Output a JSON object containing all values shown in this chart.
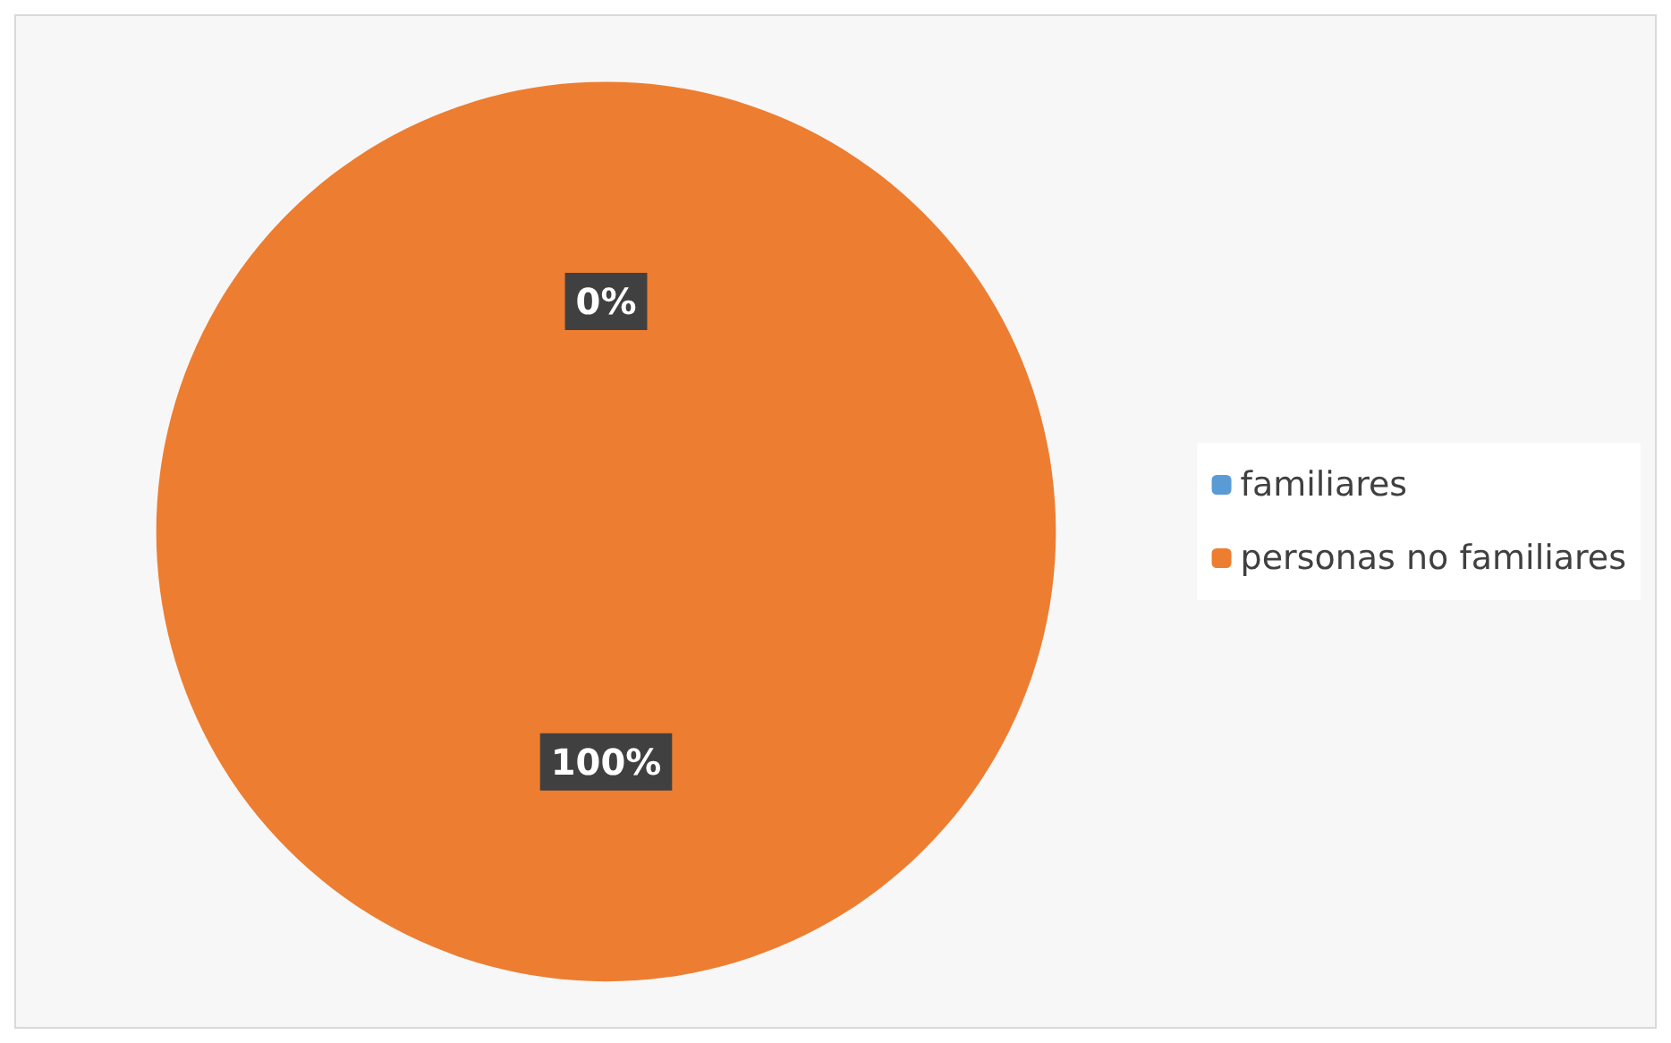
{
  "chart_data": {
    "type": "pie",
    "categories": [
      "familiares",
      "personas no familiares"
    ],
    "values": [
      0,
      100
    ],
    "colors": [
      "#5b9bd5",
      "#ed7d31"
    ],
    "value_labels": [
      "0%",
      "100%"
    ],
    "legend": "right"
  }
}
